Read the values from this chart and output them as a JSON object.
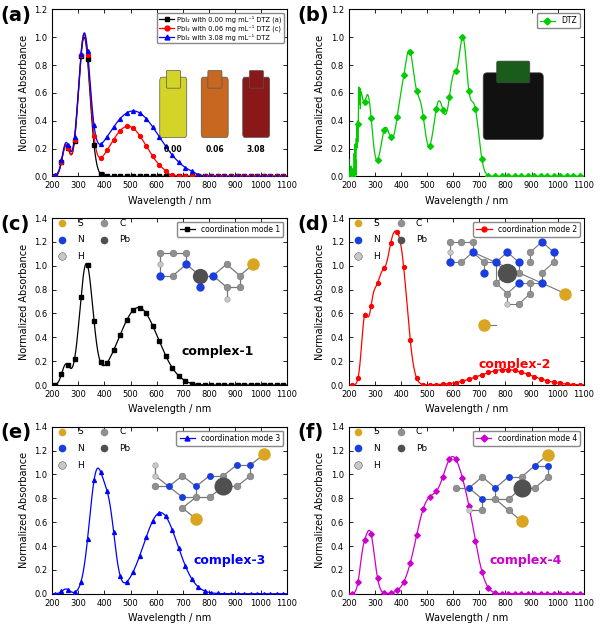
{
  "panel_labels": [
    "(a)",
    "(b)",
    "(c)",
    "(d)",
    "(e)",
    "(f)"
  ],
  "xlabel": "Wavelength / nm",
  "ylabel": "Normalized Absorbance",
  "xlim": [
    200,
    1100
  ],
  "xticks": [
    200,
    300,
    400,
    500,
    600,
    700,
    800,
    900,
    1000,
    1100
  ],
  "xticklabels": [
    "200",
    "300",
    "400",
    "500",
    "600",
    "700",
    "800",
    "900",
    "1000",
    "1100"
  ],
  "panel_a": {
    "legend_labels": [
      "PbI₂ with 0.00 mg mL⁻¹ DTZ (a)",
      "PbI₂ with 0.06 mg mL⁻¹ DTZ (c)",
      "PbI₂ with 3.08 mg mL⁻¹ DTZ"
    ],
    "colors": [
      "black",
      "red",
      "blue"
    ],
    "markers": [
      "s",
      "o",
      "^"
    ],
    "ylim": [
      0,
      1.2
    ],
    "yticks": [
      0.0,
      0.2,
      0.4,
      0.6,
      0.8,
      1.0,
      1.2
    ],
    "yticklabels": [
      "0.0",
      "0.2",
      "0.4",
      "0.6",
      "0.8",
      "1.0",
      "1.2"
    ],
    "inset_labels": [
      "0.00",
      "0.06",
      "3.08"
    ]
  },
  "panel_b": {
    "legend_label": "DTZ",
    "color": "#00cc00",
    "marker": "D",
    "ylim": [
      0,
      1.2
    ],
    "yticks": [
      0.0,
      0.2,
      0.4,
      0.6,
      0.8,
      1.0,
      1.2
    ],
    "yticklabels": [
      "0.0",
      "0.2",
      "0.4",
      "0.6",
      "0.8",
      "1.0",
      "1.2"
    ]
  },
  "panel_c": {
    "legend_label": "coordination mode 1",
    "color": "black",
    "marker": "s",
    "ylim": [
      0,
      1.4
    ],
    "yticks": [
      0.0,
      0.2,
      0.4,
      0.6,
      0.8,
      1.0,
      1.2,
      1.4
    ],
    "yticklabels": [
      "0.0",
      "0.2",
      "0.4",
      "0.6",
      "0.8",
      "1.0",
      "1.2",
      "1.4"
    ],
    "complex_label": "complex-1",
    "legend_colors": {
      "S": "#DAA520",
      "C": "#909090",
      "N": "#1a3de0",
      "H": "#C8C8C8",
      "Pb": "#505050"
    }
  },
  "panel_d": {
    "legend_label": "coordination mode 2",
    "color": "red",
    "marker": "o",
    "ylim": [
      0,
      1.4
    ],
    "yticks": [
      0.0,
      0.2,
      0.4,
      0.6,
      0.8,
      1.0,
      1.2,
      1.4
    ],
    "yticklabels": [
      "0.0",
      "0.2",
      "0.4",
      "0.6",
      "0.8",
      "1.0",
      "1.2",
      "1.4"
    ],
    "complex_label": "complex-2",
    "legend_colors": {
      "S": "#DAA520",
      "C": "#909090",
      "N": "#1a3de0",
      "H": "#C8C8C8",
      "Pb": "#505050"
    }
  },
  "panel_e": {
    "legend_label": "coordination mode 3",
    "color": "blue",
    "marker": "^",
    "ylim": [
      0,
      1.4
    ],
    "yticks": [
      0.0,
      0.2,
      0.4,
      0.6,
      0.8,
      1.0,
      1.2,
      1.4
    ],
    "yticklabels": [
      "0.0",
      "0.2",
      "0.4",
      "0.6",
      "0.8",
      "1.0",
      "1.2",
      "1.4"
    ],
    "complex_label": "complex-3",
    "legend_colors": {
      "S": "#DAA520",
      "C": "#909090",
      "N": "#1a3de0",
      "H": "#C8C8C8",
      "Pb": "#505050"
    }
  },
  "panel_f": {
    "legend_label": "coordination mode 4",
    "color": "#cc00cc",
    "marker": "D",
    "ylim": [
      0,
      1.4
    ],
    "yticks": [
      0.0,
      0.2,
      0.4,
      0.6,
      0.8,
      1.0,
      1.2,
      1.4
    ],
    "yticklabels": [
      "0.0",
      "0.2",
      "0.4",
      "0.6",
      "0.8",
      "1.0",
      "1.2",
      "1.4"
    ],
    "complex_label": "complex-4",
    "legend_colors": {
      "S": "#DAA520",
      "C": "#909090",
      "N": "#1a3de0",
      "H": "#C8C8C8",
      "Pb": "#505050"
    }
  }
}
